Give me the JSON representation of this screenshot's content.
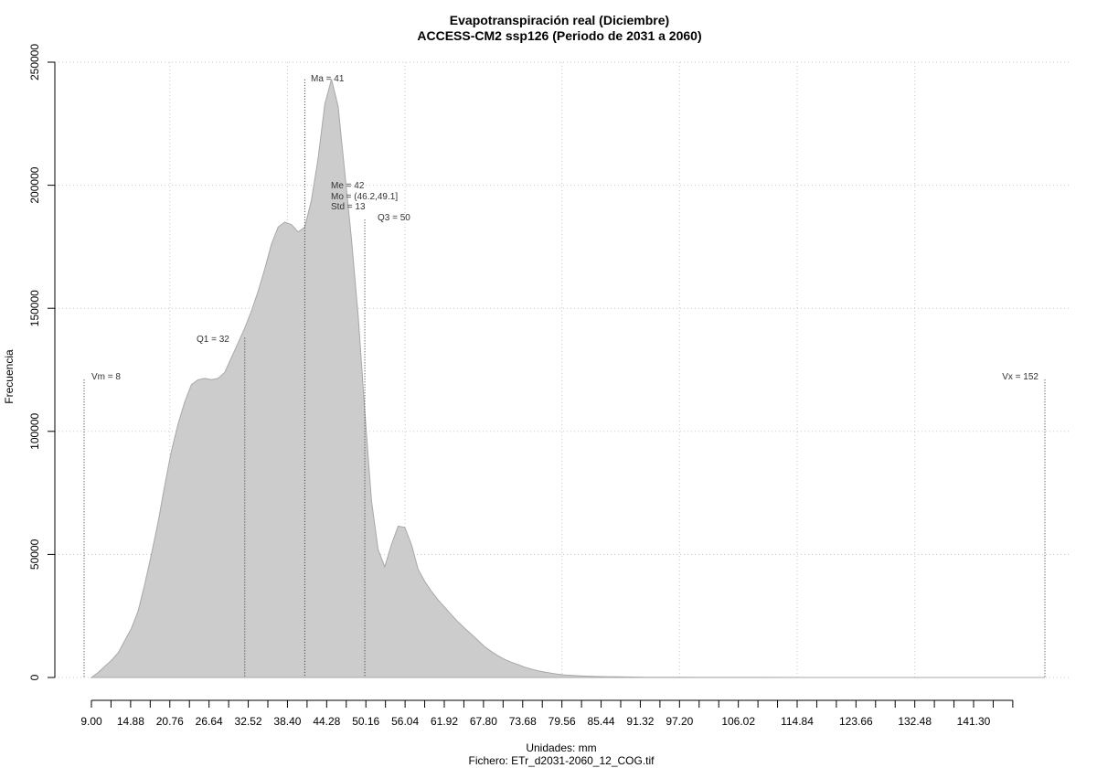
{
  "chart_data": {
    "type": "area",
    "title": "Evapotranspiración real (Diciembre)",
    "subtitle": "ACCESS-CM2 ssp126 (Periodo de 2031 a 2060)",
    "xlabel": "Unidades: mm",
    "ylabel": "Frecuencia",
    "caption": "Fichero: ETr_d2031-2060_12_COG.tif",
    "xlim": [
      8,
      152
    ],
    "ylim": [
      0,
      250000
    ],
    "grid": true,
    "fill_color": "#cccccc",
    "y_ticks": [
      0,
      50000,
      100000,
      150000,
      200000,
      250000
    ],
    "y_tick_labels": [
      "0",
      "50000",
      "100000",
      "150000",
      "200000",
      "250000"
    ],
    "x_ticks_labeled": [
      9.0,
      14.88,
      20.76,
      26.64,
      32.52,
      38.4,
      44.28,
      50.16,
      56.04,
      61.92,
      67.8,
      73.68,
      79.56,
      85.44,
      91.32,
      97.2,
      106.02,
      114.84,
      123.66,
      132.48,
      141.3
    ],
    "x_tick_labels": [
      "9.00",
      "14.88",
      "20.76",
      "26.64",
      "32.52",
      "38.40",
      "44.28",
      "50.16",
      "56.04",
      "61.92",
      "67.80",
      "73.68",
      "79.56",
      "85.44",
      "91.32",
      "97.20",
      "106.02",
      "114.84",
      "123.66",
      "132.48",
      "141.30"
    ],
    "x_ticks_minor": [
      11.94,
      17.82,
      23.7,
      29.58,
      35.46,
      41.34,
      47.22,
      53.1,
      58.98,
      64.86,
      70.74,
      76.62,
      82.5,
      88.38,
      94.26,
      100.14,
      103.08,
      108.96,
      111.9,
      117.78,
      120.72,
      126.6,
      129.54,
      135.42,
      138.36,
      144.24,
      147.18
    ],
    "x_grid": [
      20.76,
      38.4,
      56.04,
      79.56,
      97.2,
      114.84,
      132.48
    ],
    "x": [
      9,
      10,
      11,
      12,
      13,
      14,
      15,
      16,
      17,
      18,
      19,
      20,
      21,
      22,
      23,
      24,
      25,
      26,
      27,
      28,
      29,
      30,
      31,
      32,
      33,
      34,
      35,
      36,
      37,
      38,
      39,
      40,
      41,
      42,
      43,
      44,
      45,
      46,
      47,
      48,
      49,
      50,
      51,
      52,
      53,
      54,
      55,
      56,
      57,
      58,
      59,
      60,
      61,
      62,
      63,
      64,
      65,
      66,
      67,
      68,
      69,
      70,
      71,
      72,
      73,
      74,
      75,
      76,
      77,
      78,
      79,
      80,
      82,
      84,
      86,
      88,
      90,
      92,
      94,
      96,
      98,
      100,
      105,
      110,
      120,
      130,
      140,
      150,
      152
    ],
    "y": [
      0,
      2000,
      4500,
      7000,
      10000,
      15000,
      20000,
      27000,
      38000,
      50000,
      63000,
      78000,
      92000,
      103000,
      112000,
      119000,
      121000,
      121500,
      121000,
      121500,
      124000,
      130000,
      136000,
      142000,
      149000,
      157000,
      166000,
      176000,
      183000,
      185000,
      184000,
      181000,
      183000,
      194000,
      211000,
      233000,
      243000,
      232000,
      205000,
      178000,
      147000,
      108000,
      72000,
      52000,
      45000,
      54000,
      61500,
      61000,
      54000,
      44000,
      39000,
      35000,
      31500,
      28500,
      25500,
      22500,
      20000,
      17500,
      15000,
      12500,
      10500,
      8800,
      7300,
      6200,
      5200,
      4200,
      3400,
      2700,
      2200,
      1700,
      1300,
      1000,
      700,
      500,
      350,
      250,
      180,
      130,
      100,
      80,
      60,
      50,
      30,
      20,
      10,
      8,
      5,
      3,
      0
    ],
    "annotations": [
      {
        "text": "Vm = 8",
        "x": 8,
        "line_top": 121000
      },
      {
        "text": "Q1 = 32",
        "x": 32,
        "line_top": 138000
      },
      {
        "text": "Ma = 41",
        "x": 41,
        "line_top": 243000
      },
      {
        "text": "Me = 42",
        "x": 42
      },
      {
        "text": "Mo = (46.2,49.1]",
        "x": 42
      },
      {
        "text": "Std = 13",
        "x": 42
      },
      {
        "text": "Q3 = 50",
        "x": 50,
        "line_top": 186000
      },
      {
        "text": "Vx = 152",
        "x": 152,
        "line_top": 121000
      }
    ]
  }
}
